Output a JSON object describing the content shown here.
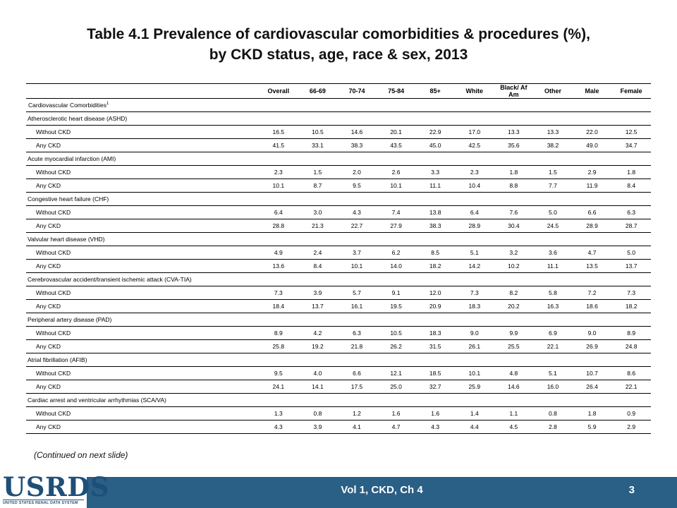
{
  "title_line1": "Table 4.1  Prevalence of cardiovascular comorbidities & procedures (%),",
  "title_line2": "by CKD status, age, race & sex, 2013",
  "columns": [
    "",
    "Overall",
    "66-69",
    "70-74",
    "75-84",
    "85+",
    "White",
    "Black/ Af Am",
    "Other",
    "Male",
    "Female"
  ],
  "category_label": "Cardiovascular  Comorbidities",
  "category_sup": "1",
  "sections": [
    {
      "label": "Atherosclerotic  heart disease (ASHD)",
      "rows": [
        {
          "label": "Without CKD",
          "values": [
            "16.5",
            "10.5",
            "14.6",
            "20.1",
            "22.9",
            "17.0",
            "13.3",
            "13.3",
            "22.0",
            "12.5"
          ]
        },
        {
          "label": "Any CKD",
          "values": [
            "41.5",
            "33.1",
            "38.3",
            "43.5",
            "45.0",
            "42.5",
            "35.6",
            "38.2",
            "49.0",
            "34.7"
          ]
        }
      ]
    },
    {
      "label": "Acute  myocardial infarction  (AMI)",
      "rows": [
        {
          "label": "Without CKD",
          "values": [
            "2.3",
            "1.5",
            "2.0",
            "2.6",
            "3.3",
            "2.3",
            "1.8",
            "1.5",
            "2.9",
            "1.8"
          ]
        },
        {
          "label": "Any CKD",
          "values": [
            "10.1",
            "8.7",
            "9.5",
            "10.1",
            "11.1",
            "10.4",
            "8.8",
            "7.7",
            "11.9",
            "8.4"
          ]
        }
      ]
    },
    {
      "label": "Congestive heart failure (CHF)",
      "rows": [
        {
          "label": "Without CKD",
          "values": [
            "6.4",
            "3.0",
            "4.3",
            "7.4",
            "13.8",
            "6.4",
            "7.6",
            "5.0",
            "6.6",
            "6.3"
          ]
        },
        {
          "label": "Any CKD",
          "values": [
            "28.8",
            "21.3",
            "22.7",
            "27.9",
            "38.3",
            "28.9",
            "30.4",
            "24.5",
            "28.9",
            "28.7"
          ]
        }
      ]
    },
    {
      "label": "Valvular heart disease (VHD)",
      "rows": [
        {
          "label": "Without CKD",
          "values": [
            "4.9",
            "2.4",
            "3.7",
            "6.2",
            "8.5",
            "5.1",
            "3.2",
            "3.6",
            "4.7",
            "5.0"
          ]
        },
        {
          "label": "Any CKD",
          "values": [
            "13.6",
            "8.4",
            "10.1",
            "14.0",
            "18.2",
            "14.2",
            "10.2",
            "11.1",
            "13.5",
            "13.7"
          ]
        }
      ]
    },
    {
      "label": "Cerebrovascular  accident/transient  ischemic attack (CVA-TIA)",
      "rows": [
        {
          "label": "Without CKD",
          "values": [
            "7.3",
            "3.9",
            "5.7",
            "9.1",
            "12.0",
            "7.3",
            "8.2",
            "5.8",
            "7.2",
            "7.3"
          ]
        },
        {
          "label": "Any CKD",
          "values": [
            "18.4",
            "13.7",
            "16.1",
            "19.5",
            "20.9",
            "18.3",
            "20.2",
            "16.3",
            "18.6",
            "18.2"
          ]
        }
      ]
    },
    {
      "label": "Peripheral  artery disease (PAD)",
      "rows": [
        {
          "label": "Without CKD",
          "values": [
            "8.9",
            "4.2",
            "6.3",
            "10.5",
            "18.3",
            "9.0",
            "9.9",
            "6.9",
            "9.0",
            "8.9"
          ]
        },
        {
          "label": "Any CKD",
          "values": [
            "25.8",
            "19.2",
            "21.8",
            "26.2",
            "31.5",
            "26.1",
            "25.5",
            "22.1",
            "26.9",
            "24.8"
          ]
        }
      ]
    },
    {
      "label": "Atrial fibrillation  (AFIB)",
      "rows": [
        {
          "label": "Without CKD",
          "values": [
            "9.5",
            "4.0",
            "6.6",
            "12.1",
            "18.5",
            "10.1",
            "4.8",
            "5.1",
            "10.7",
            "8.6"
          ]
        },
        {
          "label": "Any CKD",
          "values": [
            "24.1",
            "14.1",
            "17.5",
            "25.0",
            "32.7",
            "25.9",
            "14.6",
            "16.0",
            "26.4",
            "22.1"
          ]
        }
      ]
    },
    {
      "label": "Cardiac  arrest  and  ventricular  arrhythmias  (SCA/VA)",
      "rows": [
        {
          "label": "Without CKD",
          "values": [
            "1.3",
            "0.8",
            "1.2",
            "1.6",
            "1.6",
            "1.4",
            "1.1",
            "0.8",
            "1.8",
            "0.9"
          ]
        },
        {
          "label": "Any CKD",
          "values": [
            "4.3",
            "3.9",
            "4.1",
            "4.7",
            "4.3",
            "4.4",
            "4.5",
            "2.8",
            "5.9",
            "2.9"
          ]
        }
      ]
    }
  ],
  "continued_note": "(Continued on next slide)",
  "footer": {
    "text": "Vol 1, CKD, Ch 4",
    "page": "3",
    "bar_color": "#2a5f86"
  },
  "logo": {
    "main": "USRDS",
    "sub": "UNITED STATES RENAL DATA SYSTEM"
  }
}
